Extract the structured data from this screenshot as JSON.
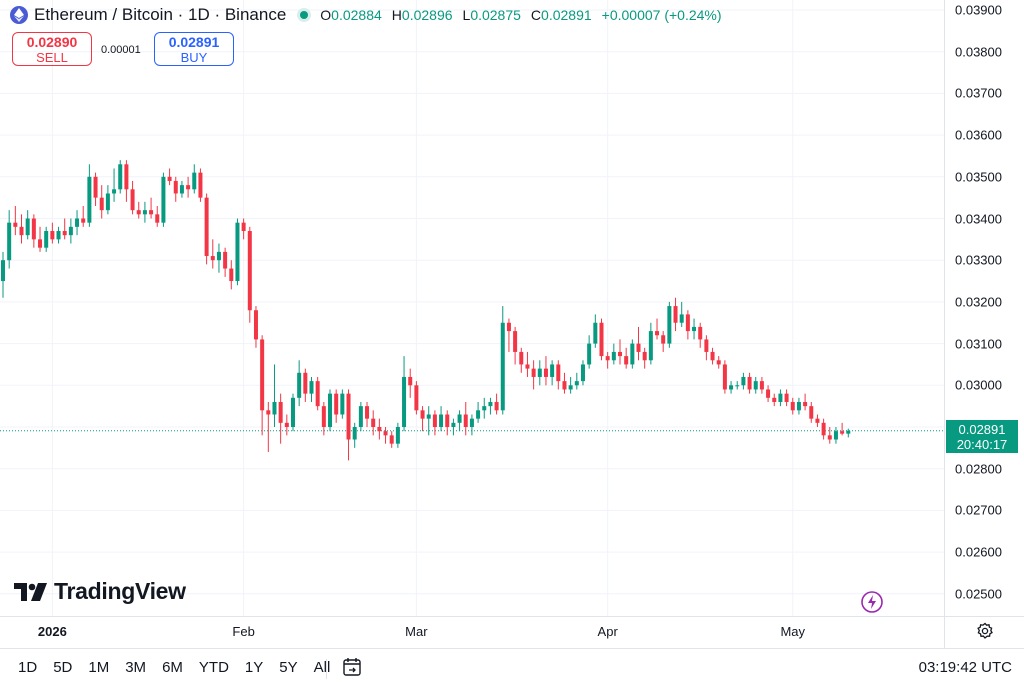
{
  "header": {
    "title": "Ethereum / Bitcoin · 1D · Binance",
    "ohlc": [
      {
        "key": "O",
        "value": "0.02884"
      },
      {
        "key": "H",
        "value": "0.02896"
      },
      {
        "key": "L",
        "value": "0.02875"
      },
      {
        "key": "C",
        "value": "0.02891"
      }
    ],
    "change": "+0.00007 (+0.24%)"
  },
  "trade": {
    "sell_price": "0.02890",
    "sell_label": "SELL",
    "spread": "0.00001",
    "buy_price": "0.02891",
    "buy_label": "BUY"
  },
  "last_price": {
    "value": "0.02891",
    "countdown": "20:40:17"
  },
  "y_ticks": [
    "0.03900",
    "0.03800",
    "0.03700",
    "0.03600",
    "0.03500",
    "0.03400",
    "0.03300",
    "0.03200",
    "0.03100",
    "0.03000",
    "0.02900",
    "0.02800",
    "0.02700",
    "0.02600",
    "0.02500"
  ],
  "x_ticks": [
    {
      "label": "2026",
      "bold": true
    },
    {
      "label": "Feb",
      "bold": false
    },
    {
      "label": "Mar",
      "bold": false
    },
    {
      "label": "Apr",
      "bold": false
    },
    {
      "label": "May",
      "bold": false
    }
  ],
  "logo": "TradingView",
  "timeframes": [
    "1D",
    "5D",
    "1M",
    "3M",
    "6M",
    "YTD",
    "1Y",
    "5Y",
    "All"
  ],
  "clock": "03:19:42 UTC",
  "colors": {
    "up": "#089981",
    "down": "#f23645",
    "grid": "#f0f3fa",
    "text": "#131722"
  },
  "icons": [
    "ethereum-icon",
    "live-dot",
    "calendar-icon",
    "settings-icon",
    "flash-icon"
  ],
  "chart_data": {
    "type": "candlestick",
    "symbol": "ETHBTC",
    "interval": "1D",
    "ylim": [
      0.0246,
      0.0392
    ],
    "first_date": "2025-12-24",
    "grid": true,
    "candles": [
      {
        "date": "2025-12-24",
        "o": 0.0325,
        "h": 0.0332,
        "l": 0.0321,
        "c": 0.033
      },
      {
        "date": "2025-12-25",
        "o": 0.033,
        "h": 0.0342,
        "l": 0.0328,
        "c": 0.0339
      },
      {
        "date": "2025-12-26",
        "o": 0.0339,
        "h": 0.0343,
        "l": 0.0336,
        "c": 0.0338
      },
      {
        "date": "2025-12-27",
        "o": 0.0338,
        "h": 0.0341,
        "l": 0.0334,
        "c": 0.0336
      },
      {
        "date": "2025-12-28",
        "o": 0.0336,
        "h": 0.0342,
        "l": 0.0335,
        "c": 0.034
      },
      {
        "date": "2025-12-29",
        "o": 0.034,
        "h": 0.0341,
        "l": 0.0333,
        "c": 0.0335
      },
      {
        "date": "2025-12-30",
        "o": 0.0335,
        "h": 0.0338,
        "l": 0.0332,
        "c": 0.0333
      },
      {
        "date": "2025-12-31",
        "o": 0.0333,
        "h": 0.0338,
        "l": 0.0332,
        "c": 0.0337
      },
      {
        "date": "2026-01-01",
        "o": 0.0337,
        "h": 0.0339,
        "l": 0.0334,
        "c": 0.0335
      },
      {
        "date": "2026-01-02",
        "o": 0.0335,
        "h": 0.0338,
        "l": 0.0334,
        "c": 0.0337
      },
      {
        "date": "2026-01-03",
        "o": 0.0337,
        "h": 0.034,
        "l": 0.0335,
        "c": 0.0336
      },
      {
        "date": "2026-01-04",
        "o": 0.0336,
        "h": 0.034,
        "l": 0.0334,
        "c": 0.0338
      },
      {
        "date": "2026-01-05",
        "o": 0.0338,
        "h": 0.0342,
        "l": 0.0336,
        "c": 0.034
      },
      {
        "date": "2026-01-06",
        "o": 0.034,
        "h": 0.0343,
        "l": 0.0338,
        "c": 0.0339
      },
      {
        "date": "2026-01-07",
        "o": 0.0339,
        "h": 0.0353,
        "l": 0.0338,
        "c": 0.035
      },
      {
        "date": "2026-01-08",
        "o": 0.035,
        "h": 0.0351,
        "l": 0.0343,
        "c": 0.0345
      },
      {
        "date": "2026-01-09",
        "o": 0.0345,
        "h": 0.0348,
        "l": 0.034,
        "c": 0.0342
      },
      {
        "date": "2026-01-10",
        "o": 0.0342,
        "h": 0.0348,
        "l": 0.0341,
        "c": 0.0346
      },
      {
        "date": "2026-01-11",
        "o": 0.0346,
        "h": 0.0352,
        "l": 0.0344,
        "c": 0.0347
      },
      {
        "date": "2026-01-12",
        "o": 0.0347,
        "h": 0.0354,
        "l": 0.0346,
        "c": 0.0353
      },
      {
        "date": "2026-01-13",
        "o": 0.0353,
        "h": 0.0354,
        "l": 0.0344,
        "c": 0.0347
      },
      {
        "date": "2026-01-14",
        "o": 0.0347,
        "h": 0.0349,
        "l": 0.0341,
        "c": 0.0342
      },
      {
        "date": "2026-01-15",
        "o": 0.0342,
        "h": 0.0344,
        "l": 0.034,
        "c": 0.0341
      },
      {
        "date": "2026-01-16",
        "o": 0.0341,
        "h": 0.0344,
        "l": 0.0339,
        "c": 0.0342
      },
      {
        "date": "2026-01-17",
        "o": 0.0342,
        "h": 0.0345,
        "l": 0.034,
        "c": 0.0341
      },
      {
        "date": "2026-01-18",
        "o": 0.0341,
        "h": 0.0343,
        "l": 0.0338,
        "c": 0.0339
      },
      {
        "date": "2026-01-19",
        "o": 0.0339,
        "h": 0.0351,
        "l": 0.0338,
        "c": 0.035
      },
      {
        "date": "2026-01-20",
        "o": 0.035,
        "h": 0.0352,
        "l": 0.0348,
        "c": 0.0349
      },
      {
        "date": "2026-01-21",
        "o": 0.0349,
        "h": 0.035,
        "l": 0.0344,
        "c": 0.0346
      },
      {
        "date": "2026-01-22",
        "o": 0.0346,
        "h": 0.0349,
        "l": 0.0345,
        "c": 0.0348
      },
      {
        "date": "2026-01-23",
        "o": 0.0348,
        "h": 0.035,
        "l": 0.0345,
        "c": 0.0347
      },
      {
        "date": "2026-01-24",
        "o": 0.0347,
        "h": 0.0353,
        "l": 0.0346,
        "c": 0.0351
      },
      {
        "date": "2026-01-25",
        "o": 0.0351,
        "h": 0.0352,
        "l": 0.0344,
        "c": 0.0345
      },
      {
        "date": "2026-01-26",
        "o": 0.0345,
        "h": 0.0346,
        "l": 0.0329,
        "c": 0.0331
      },
      {
        "date": "2026-01-27",
        "o": 0.0331,
        "h": 0.0335,
        "l": 0.0328,
        "c": 0.033
      },
      {
        "date": "2026-01-28",
        "o": 0.033,
        "h": 0.0334,
        "l": 0.0327,
        "c": 0.0332
      },
      {
        "date": "2026-01-29",
        "o": 0.0332,
        "h": 0.0333,
        "l": 0.0326,
        "c": 0.0328
      },
      {
        "date": "2026-01-30",
        "o": 0.0328,
        "h": 0.033,
        "l": 0.0323,
        "c": 0.0325
      },
      {
        "date": "2026-01-31",
        "o": 0.0325,
        "h": 0.034,
        "l": 0.0324,
        "c": 0.0339
      },
      {
        "date": "2026-02-01",
        "o": 0.0339,
        "h": 0.034,
        "l": 0.0335,
        "c": 0.0337
      },
      {
        "date": "2026-02-02",
        "o": 0.0337,
        "h": 0.0338,
        "l": 0.0315,
        "c": 0.0318
      },
      {
        "date": "2026-02-03",
        "o": 0.0318,
        "h": 0.0319,
        "l": 0.0309,
        "c": 0.0311
      },
      {
        "date": "2026-02-04",
        "o": 0.0311,
        "h": 0.0312,
        "l": 0.0288,
        "c": 0.0294
      },
      {
        "date": "2026-02-05",
        "o": 0.0294,
        "h": 0.0296,
        "l": 0.0284,
        "c": 0.0293
      },
      {
        "date": "2026-02-06",
        "o": 0.0293,
        "h": 0.0305,
        "l": 0.029,
        "c": 0.0296
      },
      {
        "date": "2026-02-07",
        "o": 0.0296,
        "h": 0.0298,
        "l": 0.0286,
        "c": 0.0291
      },
      {
        "date": "2026-02-08",
        "o": 0.0291,
        "h": 0.0293,
        "l": 0.0288,
        "c": 0.029
      },
      {
        "date": "2026-02-09",
        "o": 0.029,
        "h": 0.0298,
        "l": 0.0289,
        "c": 0.0297
      },
      {
        "date": "2026-02-10",
        "o": 0.0297,
        "h": 0.0306,
        "l": 0.0295,
        "c": 0.0303
      },
      {
        "date": "2026-02-11",
        "o": 0.0303,
        "h": 0.0304,
        "l": 0.0296,
        "c": 0.0298
      },
      {
        "date": "2026-02-12",
        "o": 0.0298,
        "h": 0.0302,
        "l": 0.0296,
        "c": 0.0301
      },
      {
        "date": "2026-02-13",
        "o": 0.0301,
        "h": 0.0302,
        "l": 0.0294,
        "c": 0.0295
      },
      {
        "date": "2026-02-14",
        "o": 0.0295,
        "h": 0.0296,
        "l": 0.0288,
        "c": 0.029
      },
      {
        "date": "2026-02-15",
        "o": 0.029,
        "h": 0.0299,
        "l": 0.0289,
        "c": 0.0298
      },
      {
        "date": "2026-02-16",
        "o": 0.0298,
        "h": 0.0299,
        "l": 0.0291,
        "c": 0.0293
      },
      {
        "date": "2026-02-17",
        "o": 0.0293,
        "h": 0.0299,
        "l": 0.0292,
        "c": 0.0298
      },
      {
        "date": "2026-02-18",
        "o": 0.0298,
        "h": 0.0299,
        "l": 0.0282,
        "c": 0.0287
      },
      {
        "date": "2026-02-19",
        "o": 0.0287,
        "h": 0.0291,
        "l": 0.0285,
        "c": 0.029
      },
      {
        "date": "2026-02-20",
        "o": 0.029,
        "h": 0.0296,
        "l": 0.0289,
        "c": 0.0295
      },
      {
        "date": "2026-02-21",
        "o": 0.0295,
        "h": 0.0296,
        "l": 0.029,
        "c": 0.0292
      },
      {
        "date": "2026-02-22",
        "o": 0.0292,
        "h": 0.0294,
        "l": 0.0288,
        "c": 0.029
      },
      {
        "date": "2026-02-23",
        "o": 0.029,
        "h": 0.0292,
        "l": 0.0287,
        "c": 0.0289
      },
      {
        "date": "2026-02-24",
        "o": 0.0289,
        "h": 0.029,
        "l": 0.0286,
        "c": 0.0288
      },
      {
        "date": "2026-02-25",
        "o": 0.0288,
        "h": 0.0289,
        "l": 0.0285,
        "c": 0.0286
      },
      {
        "date": "2026-02-26",
        "o": 0.0286,
        "h": 0.0291,
        "l": 0.0285,
        "c": 0.029
      },
      {
        "date": "2026-02-27",
        "o": 0.029,
        "h": 0.0307,
        "l": 0.0289,
        "c": 0.0302
      },
      {
        "date": "2026-02-28",
        "o": 0.0302,
        "h": 0.0304,
        "l": 0.0297,
        "c": 0.03
      },
      {
        "date": "2026-03-01",
        "o": 0.03,
        "h": 0.0301,
        "l": 0.0293,
        "c": 0.0294
      },
      {
        "date": "2026-03-02",
        "o": 0.0294,
        "h": 0.0295,
        "l": 0.0289,
        "c": 0.0292
      },
      {
        "date": "2026-03-03",
        "o": 0.0292,
        "h": 0.0295,
        "l": 0.0288,
        "c": 0.0293
      },
      {
        "date": "2026-03-04",
        "o": 0.0293,
        "h": 0.0294,
        "l": 0.0288,
        "c": 0.029
      },
      {
        "date": "2026-03-05",
        "o": 0.029,
        "h": 0.0295,
        "l": 0.0289,
        "c": 0.0293
      },
      {
        "date": "2026-03-06",
        "o": 0.0293,
        "h": 0.0294,
        "l": 0.0288,
        "c": 0.029
      },
      {
        "date": "2026-03-07",
        "o": 0.029,
        "h": 0.0292,
        "l": 0.0288,
        "c": 0.0291
      },
      {
        "date": "2026-03-08",
        "o": 0.0291,
        "h": 0.0294,
        "l": 0.0289,
        "c": 0.0293
      },
      {
        "date": "2026-03-09",
        "o": 0.0293,
        "h": 0.0296,
        "l": 0.0288,
        "c": 0.029
      },
      {
        "date": "2026-03-10",
        "o": 0.029,
        "h": 0.0293,
        "l": 0.0288,
        "c": 0.0292
      },
      {
        "date": "2026-03-11",
        "o": 0.0292,
        "h": 0.0296,
        "l": 0.0291,
        "c": 0.0294
      },
      {
        "date": "2026-03-12",
        "o": 0.0294,
        "h": 0.0297,
        "l": 0.0292,
        "c": 0.0295
      },
      {
        "date": "2026-03-13",
        "o": 0.0295,
        "h": 0.0297,
        "l": 0.0293,
        "c": 0.0296
      },
      {
        "date": "2026-03-14",
        "o": 0.0296,
        "h": 0.0298,
        "l": 0.0293,
        "c": 0.0294
      },
      {
        "date": "2026-03-15",
        "o": 0.0294,
        "h": 0.0319,
        "l": 0.0293,
        "c": 0.0315
      },
      {
        "date": "2026-03-16",
        "o": 0.0315,
        "h": 0.0316,
        "l": 0.0308,
        "c": 0.0313
      },
      {
        "date": "2026-03-17",
        "o": 0.0313,
        "h": 0.0314,
        "l": 0.0305,
        "c": 0.0308
      },
      {
        "date": "2026-03-18",
        "o": 0.0308,
        "h": 0.0309,
        "l": 0.0303,
        "c": 0.0305
      },
      {
        "date": "2026-03-19",
        "o": 0.0305,
        "h": 0.0308,
        "l": 0.0302,
        "c": 0.0304
      },
      {
        "date": "2026-03-20",
        "o": 0.0304,
        "h": 0.0306,
        "l": 0.0299,
        "c": 0.0302
      },
      {
        "date": "2026-03-21",
        "o": 0.0302,
        "h": 0.0306,
        "l": 0.03,
        "c": 0.0304
      },
      {
        "date": "2026-03-22",
        "o": 0.0304,
        "h": 0.0307,
        "l": 0.03,
        "c": 0.0302
      },
      {
        "date": "2026-03-23",
        "o": 0.0302,
        "h": 0.0306,
        "l": 0.03,
        "c": 0.0305
      },
      {
        "date": "2026-03-24",
        "o": 0.0305,
        "h": 0.0306,
        "l": 0.0299,
        "c": 0.0301
      },
      {
        "date": "2026-03-25",
        "o": 0.0301,
        "h": 0.0303,
        "l": 0.0298,
        "c": 0.0299
      },
      {
        "date": "2026-03-26",
        "o": 0.0299,
        "h": 0.0302,
        "l": 0.0298,
        "c": 0.03
      },
      {
        "date": "2026-03-27",
        "o": 0.03,
        "h": 0.0303,
        "l": 0.0299,
        "c": 0.0301
      },
      {
        "date": "2026-03-28",
        "o": 0.0301,
        "h": 0.0306,
        "l": 0.03,
        "c": 0.0305
      },
      {
        "date": "2026-03-29",
        "o": 0.0305,
        "h": 0.0312,
        "l": 0.0304,
        "c": 0.031
      },
      {
        "date": "2026-03-30",
        "o": 0.031,
        "h": 0.0317,
        "l": 0.0309,
        "c": 0.0315
      },
      {
        "date": "2026-03-31",
        "o": 0.0315,
        "h": 0.0316,
        "l": 0.0306,
        "c": 0.0307
      },
      {
        "date": "2026-04-01",
        "o": 0.0307,
        "h": 0.0308,
        "l": 0.0304,
        "c": 0.0306
      },
      {
        "date": "2026-04-02",
        "o": 0.0306,
        "h": 0.031,
        "l": 0.0305,
        "c": 0.0308
      },
      {
        "date": "2026-04-03",
        "o": 0.0308,
        "h": 0.0311,
        "l": 0.0305,
        "c": 0.0307
      },
      {
        "date": "2026-04-04",
        "o": 0.0307,
        "h": 0.0309,
        "l": 0.0304,
        "c": 0.0305
      },
      {
        "date": "2026-04-05",
        "o": 0.0305,
        "h": 0.0311,
        "l": 0.0304,
        "c": 0.031
      },
      {
        "date": "2026-04-06",
        "o": 0.031,
        "h": 0.0314,
        "l": 0.0306,
        "c": 0.0308
      },
      {
        "date": "2026-04-07",
        "o": 0.0308,
        "h": 0.0309,
        "l": 0.0304,
        "c": 0.0306
      },
      {
        "date": "2026-04-08",
        "o": 0.0306,
        "h": 0.0315,
        "l": 0.0305,
        "c": 0.0313
      },
      {
        "date": "2026-04-09",
        "o": 0.0313,
        "h": 0.0316,
        "l": 0.0311,
        "c": 0.0312
      },
      {
        "date": "2026-04-10",
        "o": 0.0312,
        "h": 0.0313,
        "l": 0.0308,
        "c": 0.031
      },
      {
        "date": "2026-04-11",
        "o": 0.031,
        "h": 0.032,
        "l": 0.0309,
        "c": 0.0319
      },
      {
        "date": "2026-04-12",
        "o": 0.0319,
        "h": 0.0321,
        "l": 0.0313,
        "c": 0.0315
      },
      {
        "date": "2026-04-13",
        "o": 0.0315,
        "h": 0.032,
        "l": 0.0314,
        "c": 0.0317
      },
      {
        "date": "2026-04-14",
        "o": 0.0317,
        "h": 0.0318,
        "l": 0.0311,
        "c": 0.0313
      },
      {
        "date": "2026-04-15",
        "o": 0.0313,
        "h": 0.0316,
        "l": 0.0311,
        "c": 0.0314
      },
      {
        "date": "2026-04-16",
        "o": 0.0314,
        "h": 0.0315,
        "l": 0.0309,
        "c": 0.0311
      },
      {
        "date": "2026-04-17",
        "o": 0.0311,
        "h": 0.0312,
        "l": 0.0306,
        "c": 0.0308
      },
      {
        "date": "2026-04-18",
        "o": 0.0308,
        "h": 0.0309,
        "l": 0.0305,
        "c": 0.0306
      },
      {
        "date": "2026-04-19",
        "o": 0.0306,
        "h": 0.0307,
        "l": 0.0304,
        "c": 0.0305
      },
      {
        "date": "2026-04-20",
        "o": 0.0305,
        "h": 0.0306,
        "l": 0.0298,
        "c": 0.0299
      },
      {
        "date": "2026-04-21",
        "o": 0.0299,
        "h": 0.0301,
        "l": 0.0298,
        "c": 0.03
      },
      {
        "date": "2026-04-22",
        "o": 0.03,
        "h": 0.0301,
        "l": 0.0299,
        "c": 0.03
      },
      {
        "date": "2026-04-23",
        "o": 0.03,
        "h": 0.0303,
        "l": 0.0299,
        "c": 0.0302
      },
      {
        "date": "2026-04-24",
        "o": 0.0302,
        "h": 0.0303,
        "l": 0.0298,
        "c": 0.0299
      },
      {
        "date": "2026-04-25",
        "o": 0.0299,
        "h": 0.0302,
        "l": 0.0298,
        "c": 0.0301
      },
      {
        "date": "2026-04-26",
        "o": 0.0301,
        "h": 0.0302,
        "l": 0.0298,
        "c": 0.0299
      },
      {
        "date": "2026-04-27",
        "o": 0.0299,
        "h": 0.03,
        "l": 0.0296,
        "c": 0.0297
      },
      {
        "date": "2026-04-28",
        "o": 0.0297,
        "h": 0.0298,
        "l": 0.0295,
        "c": 0.0296
      },
      {
        "date": "2026-04-29",
        "o": 0.0296,
        "h": 0.0299,
        "l": 0.0295,
        "c": 0.0298
      },
      {
        "date": "2026-04-30",
        "o": 0.0298,
        "h": 0.0299,
        "l": 0.0295,
        "c": 0.0296
      },
      {
        "date": "2026-05-01",
        "o": 0.0296,
        "h": 0.0297,
        "l": 0.0293,
        "c": 0.0294
      },
      {
        "date": "2026-05-02",
        "o": 0.0294,
        "h": 0.0297,
        "l": 0.0293,
        "c": 0.0296
      },
      {
        "date": "2026-05-03",
        "o": 0.0296,
        "h": 0.0298,
        "l": 0.0294,
        "c": 0.0295
      },
      {
        "date": "2026-05-04",
        "o": 0.0295,
        "h": 0.0296,
        "l": 0.0291,
        "c": 0.0292
      },
      {
        "date": "2026-05-05",
        "o": 0.0292,
        "h": 0.0293,
        "l": 0.029,
        "c": 0.0291
      },
      {
        "date": "2026-05-06",
        "o": 0.0291,
        "h": 0.0292,
        "l": 0.0287,
        "c": 0.0288
      },
      {
        "date": "2026-05-07",
        "o": 0.0288,
        "h": 0.029,
        "l": 0.0286,
        "c": 0.0287
      },
      {
        "date": "2026-05-08",
        "o": 0.0287,
        "h": 0.029,
        "l": 0.0286,
        "c": 0.0289
      },
      {
        "date": "2026-05-09",
        "o": 0.0289,
        "h": 0.0291,
        "l": 0.0288,
        "c": 0.02884
      },
      {
        "date": "2026-05-10",
        "o": 0.02884,
        "h": 0.02896,
        "l": 0.02875,
        "c": 0.02891
      }
    ]
  }
}
